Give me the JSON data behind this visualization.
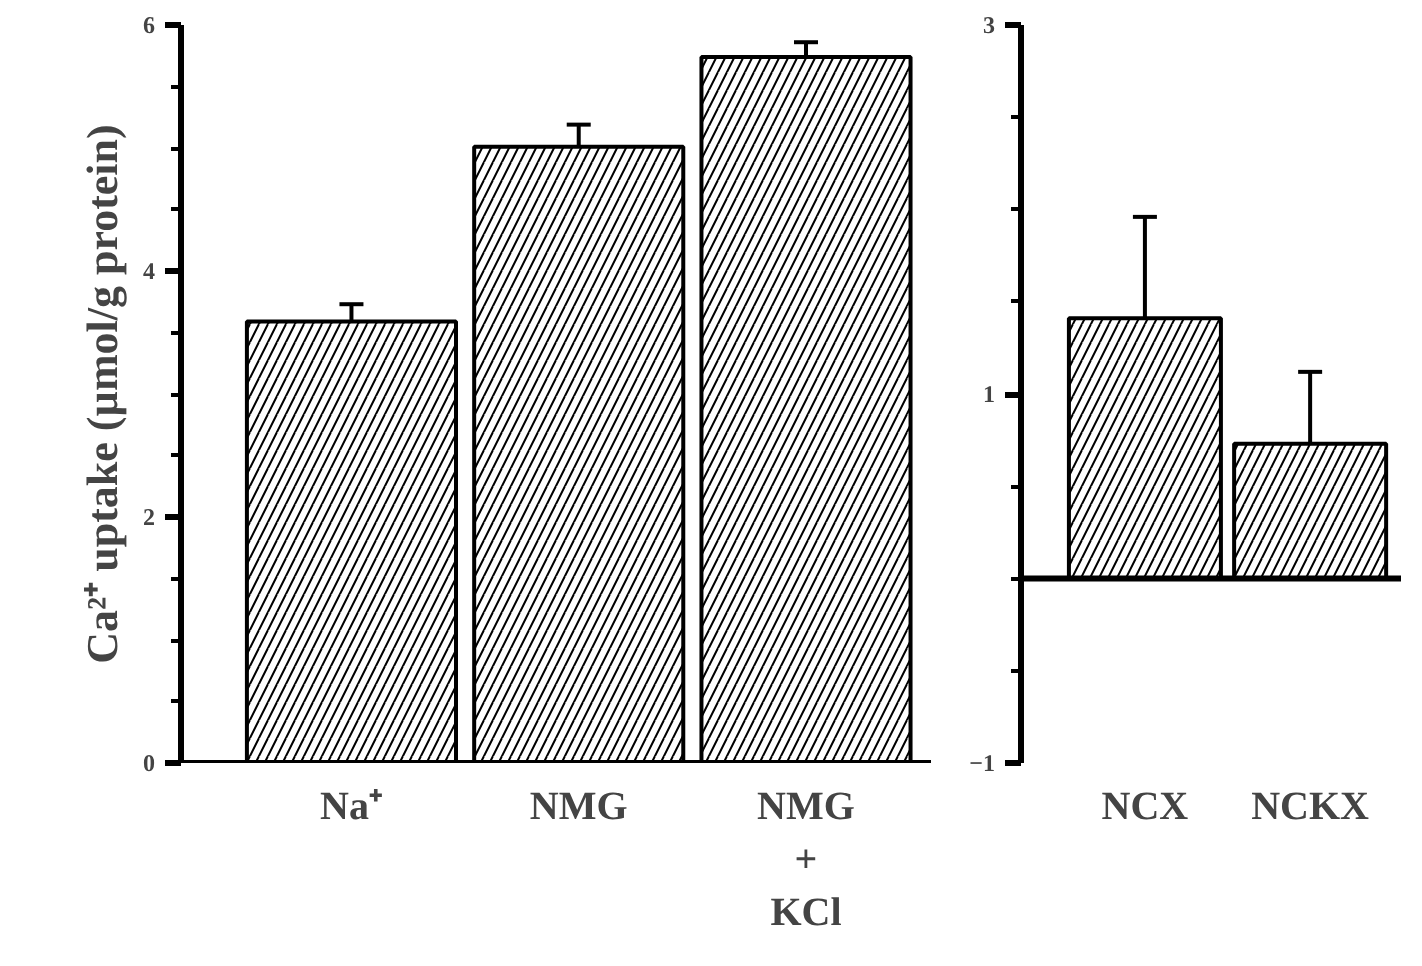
{
  "chart_data": [
    {
      "type": "bar",
      "ylabel": "Ca²⁺ uptake (µmol/g protein)",
      "categories": [
        "Na⁺",
        "NMG",
        "NMG\n+\nKCl"
      ],
      "values": [
        3.59,
        5.01,
        5.74
      ],
      "errors": [
        0.14,
        0.18,
        0.12
      ],
      "color": "#000000",
      "ylim": [
        0,
        6
      ],
      "yticks": [
        0,
        2,
        4,
        6
      ],
      "grid": false
    },
    {
      "type": "bar",
      "categories": [
        "NCX",
        "NCKX"
      ],
      "values": [
        1.41,
        0.73
      ],
      "errors": [
        0.55,
        0.39
      ],
      "color": "#000000",
      "ylim": [
        -1,
        3
      ],
      "yticks": [
        -1,
        1,
        3
      ],
      "grid": false
    }
  ]
}
